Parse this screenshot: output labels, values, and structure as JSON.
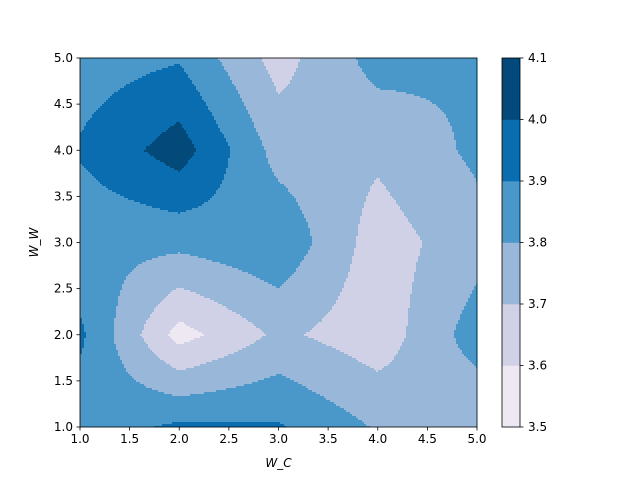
{
  "chart_data": {
    "type": "contourf",
    "xlabel": "W_C",
    "ylabel": "W_W",
    "xlim": [
      1.0,
      5.0
    ],
    "ylim": [
      1.0,
      5.0
    ],
    "x_ticks": [
      "1.0",
      "1.5",
      "2.0",
      "2.5",
      "3.0",
      "3.5",
      "4.0",
      "4.5",
      "5.0"
    ],
    "y_ticks": [
      "1.0",
      "1.5",
      "2.0",
      "2.5",
      "3.0",
      "3.5",
      "4.0",
      "4.5",
      "5.0"
    ],
    "x": [
      1,
      2,
      3,
      4,
      5
    ],
    "y": [
      1,
      2,
      3,
      4,
      5
    ],
    "z": [
      [
        3.84,
        3.92,
        3.91,
        3.79,
        3.71
      ],
      [
        3.92,
        3.56,
        3.72,
        3.64,
        3.85
      ],
      [
        3.83,
        3.83,
        3.88,
        3.65,
        3.76
      ],
      [
        3.91,
        4.05,
        3.76,
        3.72,
        3.82
      ],
      [
        3.85,
        3.89,
        3.66,
        3.84,
        3.81
      ]
    ],
    "colorbar": {
      "levels": [
        3.5,
        3.6,
        3.7,
        3.8,
        3.9,
        4.0,
        4.1
      ],
      "tick_labels": [
        "3.5",
        "3.6",
        "3.7",
        "3.8",
        "3.9",
        "4.0",
        "4.1"
      ],
      "colors": [
        "#eee8f3",
        "#d0d1e6",
        "#99b8d9",
        "#4a98c9",
        "#0a6db0",
        "#034a7b"
      ]
    },
    "grid": false,
    "colormap": "PuBu"
  }
}
